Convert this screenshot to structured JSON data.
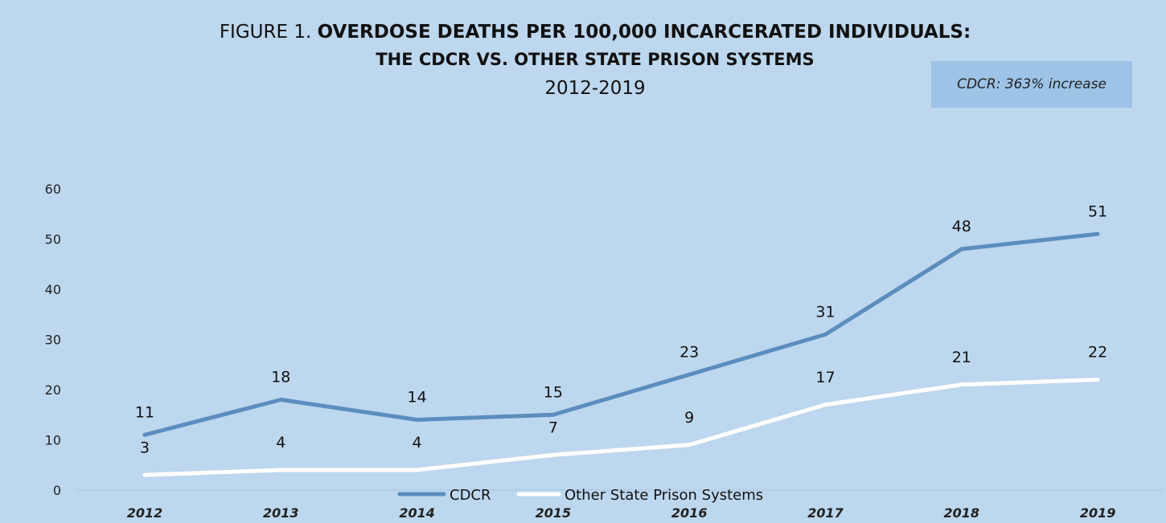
{
  "figure": {
    "title_prefix": "FIGURE 1. ",
    "title_line1_bold": "OVERDOSE DEATHS PER 100,000 INCARCERATED INDIVIDUALS:",
    "title_line2": "THE CDCR VS. OTHER STATE PRISON SYSTEMS",
    "subtitle": "2012-2019",
    "callout": "CDCR:  363% increase"
  },
  "colors": {
    "background": "#bdd7ee",
    "cdcr_line": "#5b8dbe",
    "other_line": "#ffffff",
    "callout_bg": "#9dc3e6"
  },
  "chart_data": {
    "type": "line",
    "title": "FIGURE 1. OVERDOSE DEATHS PER 100,000 INCARCERATED INDIVIDUALS: THE CDCR VS. OTHER STATE PRISON SYSTEMS",
    "subtitle": "2012-2019",
    "categories": [
      "2012",
      "2013",
      "2014",
      "2015",
      "2016",
      "2017",
      "2018",
      "2019"
    ],
    "series": [
      {
        "name": "CDCR",
        "values": [
          11,
          18,
          14,
          15,
          23,
          31,
          48,
          51
        ]
      },
      {
        "name": "Other State Prison Systems",
        "values": [
          3,
          4,
          4,
          7,
          9,
          17,
          21,
          22
        ]
      }
    ],
    "yticks": [
      0,
      10,
      20,
      30,
      40,
      50,
      60
    ],
    "ylim": [
      0,
      60
    ],
    "xlabel": "",
    "ylabel": "",
    "grid": false,
    "legend": "bottom"
  }
}
